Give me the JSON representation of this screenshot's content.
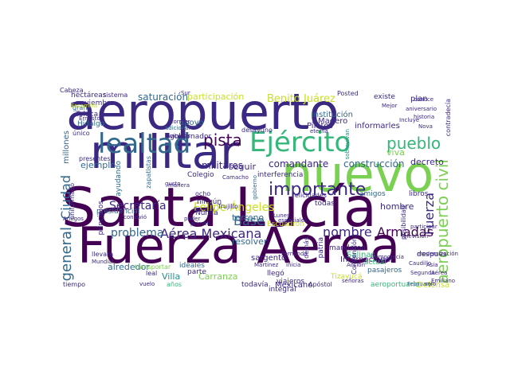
{
  "palette": {
    "deep": "#440154",
    "indigo": "#3b2883",
    "blue": "#31688e",
    "teal": "#21918c",
    "green": "#35b779",
    "lime": "#7ad151",
    "yellow": "#c8df26"
  },
  "words": [
    {
      "text": "aeropuerto",
      "weight": 1.0,
      "color": "#3b2883"
    },
    {
      "text": "militar",
      "weight": 0.82,
      "color": "#3b2883"
    },
    {
      "text": "nuevo",
      "weight": 0.8,
      "color": "#7ad151"
    },
    {
      "text": "Santa Lucía",
      "weight": 0.95,
      "color": "#440154"
    },
    {
      "text": "Fuerza Aérea",
      "weight": 0.9,
      "color": "#440154"
    },
    {
      "text": "lealtad",
      "weight": 0.45,
      "color": "#31688e"
    },
    {
      "text": "Ejército",
      "weight": 0.48,
      "color": "#35b779"
    },
    {
      "text": "pueblo",
      "weight": 0.25,
      "color": "#35b779"
    },
    {
      "text": "importante",
      "weight": 0.3,
      "color": "#3b2883"
    },
    {
      "text": "aeropuerto civil",
      "weight": 0.25,
      "color": "#7ad151"
    },
    {
      "text": "Ciudad",
      "weight": 0.22,
      "color": "#31688e"
    },
    {
      "text": "general",
      "weight": 0.2,
      "color": "#31688e"
    },
    {
      "text": "Fuerza",
      "weight": 0.22,
      "color": "#3b2883"
    },
    {
      "text": "Aérea Mexicana",
      "weight": 0.22,
      "color": "#3b2883"
    },
    {
      "text": "nombre",
      "weight": 0.2,
      "color": "#3b2883"
    },
    {
      "text": "Armadas",
      "weight": 0.2,
      "color": "#440154"
    },
    {
      "text": "pista",
      "weight": 0.2,
      "color": "#440154"
    },
    {
      "text": "Secretaría",
      "weight": 0.17,
      "color": "#3b2883"
    },
    {
      "text": "Felipe Ángeles",
      "weight": 0.17,
      "color": "#c8df26"
    },
    {
      "text": "Benito Juárez",
      "weight": 0.15,
      "color": "#c8df26"
    },
    {
      "text": "Base",
      "weight": 0.17,
      "color": "#31688e"
    },
    {
      "text": "problema",
      "weight": 0.16,
      "color": "#31688e"
    },
    {
      "text": "militares",
      "weight": 0.13,
      "color": "#3b2883"
    },
    {
      "text": "saturación",
      "weight": 0.11,
      "color": "#31688e"
    },
    {
      "text": "participación",
      "weight": 0.11,
      "color": "#c8df26"
    },
    {
      "text": "comandante",
      "weight": 0.11,
      "color": "#3b2883"
    },
    {
      "text": "construcción",
      "weight": 0.11,
      "color": "#31688e"
    },
    {
      "text": "decreto",
      "weight": 0.11,
      "color": "#3b2883"
    },
    {
      "text": "viva",
      "weight": 0.11,
      "color": "#7ad151"
    },
    {
      "text": "hombre",
      "weight": 0.11,
      "color": "#3b2883"
    },
    {
      "text": "ejemplo",
      "weight": 0.11,
      "color": "#31688e"
    },
    {
      "text": "seguir",
      "weight": 0.11,
      "color": "#3b2883"
    },
    {
      "text": "terreno",
      "weight": 0.11,
      "color": "#31688e"
    },
    {
      "text": "resolver",
      "weight": 0.11,
      "color": "#31688e"
    },
    {
      "text": "alrededor",
      "weight": 0.11,
      "color": "#31688e"
    },
    {
      "text": "Villa",
      "weight": 0.11,
      "color": "#21918c"
    },
    {
      "text": "Carranza",
      "weight": 0.11,
      "color": "#7ad151"
    },
    {
      "text": "Mexicano",
      "weight": 0.11,
      "color": "#3b2883"
    },
    {
      "text": "sargento",
      "weight": 0.1,
      "color": "#3b2883"
    },
    {
      "text": "Internacional",
      "weight": 0.1,
      "color": "#3b2883"
    },
    {
      "text": "Defensa",
      "weight": 0.1,
      "color": "#c8df26"
    },
    {
      "text": "millones",
      "weight": 0.1,
      "color": "#31688e"
    },
    {
      "text": "Pilotos",
      "weight": 0.09,
      "color": "#3b2883"
    },
    {
      "text": "Madero",
      "weight": 0.09,
      "color": "#3b2883"
    },
    {
      "text": "informarles",
      "weight": 0.09,
      "color": "#3b2883"
    },
    {
      "text": "institución",
      "weight": 0.09,
      "color": "#31688e"
    },
    {
      "text": "gobernador",
      "weight": 0.08,
      "color": "#3b2883"
    },
    {
      "text": "apoyo",
      "weight": 0.09,
      "color": "#31688e"
    },
    {
      "text": "Colegio",
      "weight": 0.08,
      "color": "#3b2883"
    },
    {
      "text": "interferencia",
      "weight": 0.08,
      "color": "#3b2883"
    },
    {
      "text": "Escuadrón",
      "weight": 0.08,
      "color": "#c8df26"
    },
    {
      "text": "libros",
      "weight": 0.08,
      "color": "#3b2883"
    },
    {
      "text": "amigos",
      "weight": 0.08,
      "color": "#31688e"
    },
    {
      "text": "actual",
      "weight": 0.07,
      "color": "#35b779"
    },
    {
      "text": "pasajeros",
      "weight": 0.08,
      "color": "#31688e"
    },
    {
      "text": "mandaron",
      "weight": 0.07,
      "color": "#3b2883"
    },
    {
      "text": "Salinas",
      "weight": 0.07,
      "color": "#35b779"
    },
    {
      "text": "Tizayucá",
      "weight": 0.07,
      "color": "#c8df26"
    },
    {
      "text": "llegó",
      "weight": 0.07,
      "color": "#3b2883"
    },
    {
      "text": "viajeros",
      "weight": 0.07,
      "color": "#3b2883"
    },
    {
      "text": "todavía",
      "weight": 0.07,
      "color": "#3b2883"
    },
    {
      "text": "integral",
      "weight": 0.07,
      "color": "#3b2883"
    },
    {
      "text": "aeroportuario",
      "weight": 0.07,
      "color": "#35b779"
    },
    {
      "text": "después",
      "weight": 0.07,
      "color": "#3b2883"
    },
    {
      "text": "Nunca",
      "weight": 0.06,
      "color": "#3b2883"
    },
    {
      "text": "ningún",
      "weight": 0.07,
      "color": "#3b2883"
    },
    {
      "text": "ocho",
      "weight": 0.06,
      "color": "#3b2883"
    },
    {
      "text": "todas",
      "weight": 0.06,
      "color": "#3b2883"
    },
    {
      "text": "existe",
      "weight": 0.06,
      "color": "#3b2883"
    },
    {
      "text": "plan",
      "weight": 0.07,
      "color": "#3b2883"
    },
    {
      "text": "hectáreas",
      "weight": 0.07,
      "color": "#3b2883"
    },
    {
      "text": "sistema",
      "weight": 0.07,
      "color": "#3b2883"
    },
    {
      "text": "noviembre",
      "weight": 0.06,
      "color": "#3b2883"
    },
    {
      "text": "Toluca",
      "weight": 0.06,
      "color": "#3b2883"
    },
    {
      "text": "Hidalgo",
      "weight": 0.06,
      "color": "#31688e"
    },
    {
      "text": "gran",
      "weight": 0.06,
      "color": "#31688e"
    },
    {
      "text": "presentes",
      "weight": 0.05,
      "color": "#3b2883"
    },
    {
      "text": "único",
      "weight": 0.05,
      "color": "#3b2883"
    },
    {
      "text": "presidencial",
      "weight": 0.05,
      "color": "#31688e"
    },
    {
      "text": "llevara",
      "weight": 0.06,
      "color": "#3b2883"
    },
    {
      "text": "leal",
      "weight": 0.05,
      "color": "#3b2883"
    },
    {
      "text": "ideales",
      "weight": 0.05,
      "color": "#31688e"
    },
    {
      "text": "parte",
      "weight": 0.06,
      "color": "#3b2883"
    },
    {
      "text": "años",
      "weight": 0.06,
      "color": "#35b779"
    },
    {
      "text": "tiempo",
      "weight": 0.05,
      "color": "#3b2883"
    },
    {
      "text": "ayudando",
      "weight": 0.05,
      "color": "#31688e"
    },
    {
      "text": "zapatistas",
      "weight": 0.05,
      "color": "#31688e"
    },
    {
      "text": "principios",
      "weight": 0.05,
      "color": "#3b2883"
    },
    {
      "text": "uniformado",
      "weight": 0.05,
      "color": "#3b2883"
    },
    {
      "text": "patria",
      "weight": 0.04,
      "color": "#3b2883"
    },
    {
      "text": "Convención",
      "weight": 0.05,
      "color": "#3b2883"
    },
    {
      "text": "posibilidad",
      "weight": 0.05,
      "color": "#3b2883"
    },
    {
      "text": "felicidades",
      "weight": 0.04,
      "color": "#3b2883"
    },
    {
      "text": "contradecía",
      "weight": 0.05,
      "color": "#3b2883"
    },
    {
      "text": "transportar",
      "weight": 0.05,
      "color": "#7ad151"
    },
    {
      "text": "demás",
      "weight": 0.05,
      "color": "#3b2883"
    },
    {
      "text": "Trujillo",
      "weight": 0.04,
      "color": "#3b2883"
    },
    {
      "text": "desayuno",
      "weight": 0.04,
      "color": "#3b2883"
    },
    {
      "text": "invitados",
      "weight": 0.04,
      "color": "#3b2883"
    },
    {
      "text": "adicional",
      "weight": 0.04,
      "color": "#31688e"
    },
    {
      "text": "sobrevivan",
      "weight": 0.04,
      "color": "#21918c"
    },
    {
      "text": "modernización",
      "weight": 0.04,
      "color": "#3b2883"
    },
    {
      "text": "Caudillo",
      "weight": 0.04,
      "color": "#3b2883"
    },
    {
      "text": "Apóstol",
      "weight": 0.04,
      "color": "#3b2883"
    },
    {
      "text": "Democracia",
      "weight": 0.04,
      "color": "#3b2883"
    },
    {
      "text": "vuelo",
      "weight": 0.04,
      "color": "#3b2883"
    },
    {
      "text": "participar",
      "weight": 0.04,
      "color": "#3b2883"
    },
    {
      "text": "solo",
      "weight": 0.04,
      "color": "#3b2883"
    },
    {
      "text": "Sur",
      "weight": 0.04,
      "color": "#3b2883"
    },
    {
      "text": "Posted",
      "weight": 0.03,
      "color": "#3b2883"
    },
    {
      "text": "Escamilla",
      "weight": 0.03,
      "color": "#c8df26"
    },
    {
      "text": "Segunda",
      "weight": 0.03,
      "color": "#3b2883"
    },
    {
      "text": "Mundial",
      "weight": 0.03,
      "color": "#3b2883"
    },
    {
      "text": "Amigos",
      "weight": 0.03,
      "color": "#3b2883"
    },
    {
      "text": "gusto",
      "weight": 0.03,
      "color": "#3b2883"
    },
    {
      "text": "February",
      "weight": 0.03,
      "color": "#31688e"
    },
    {
      "text": "Sunday",
      "weight": 0.03,
      "color": "#3b2883"
    },
    {
      "text": "poder",
      "weight": 0.03,
      "color": "#3b2883"
    },
    {
      "text": "Camacho",
      "weight": 0.03,
      "color": "#3b2883"
    },
    {
      "text": "conoce",
      "weight": 0.03,
      "color": "#3b2883"
    },
    {
      "text": "Nova",
      "weight": 0.03,
      "color": "#3b2883"
    },
    {
      "text": "Emiliano",
      "weight": 0.03,
      "color": "#3b2883"
    },
    {
      "text": "Acción",
      "weight": 0.03,
      "color": "#3b2883"
    },
    {
      "text": "especiales",
      "weight": 0.03,
      "color": "#3b2883"
    },
    {
      "text": "señoras",
      "weight": 0.03,
      "color": "#3b2883"
    },
    {
      "text": "historia",
      "weight": 0.03,
      "color": "#3b2883"
    },
    {
      "text": "Mejor",
      "weight": 0.03,
      "color": "#3b2883"
    },
    {
      "text": "Incluye",
      "weight": 0.03,
      "color": "#3b2883"
    },
    {
      "text": "former",
      "weight": 0.03,
      "color": "#3b2883"
    },
    {
      "text": "gobierno",
      "weight": 0.03,
      "color": "#31688e"
    },
    {
      "text": "Fernando",
      "weight": 0.03,
      "color": "#3b2883"
    },
    {
      "text": "Martínez",
      "weight": 0.03,
      "color": "#3b2883"
    },
    {
      "text": "Televisión",
      "weight": 0.03,
      "color": "#3b2883"
    },
    {
      "text": "Asia",
      "weight": 0.03,
      "color": "#3b2883"
    },
    {
      "text": "Aérea",
      "weight": 0.03,
      "color": "#3b2883"
    },
    {
      "text": "aniversario",
      "weight": 0.03,
      "color": "#3b2883"
    },
    {
      "text": "inicia",
      "weight": 0.03,
      "color": "#3b2883"
    },
    {
      "text": "Ernesto",
      "weight": 0.03,
      "color": "#3b2883"
    },
    {
      "text": "Lunes",
      "weight": 0.03,
      "color": "#3b2883"
    },
    {
      "text": "eterna",
      "weight": 0.03,
      "color": "#3b2883"
    },
    {
      "text": "convivió",
      "weight": 0.03,
      "color": "#3b2883"
    },
    {
      "text": "manera",
      "weight": 0.03,
      "color": "#3b2883"
    },
    {
      "text": "primer",
      "weight": 0.03,
      "color": "#3b2883"
    },
    {
      "text": "Cabeza",
      "weight": 0.03,
      "color": "#3b2883"
    }
  ]
}
